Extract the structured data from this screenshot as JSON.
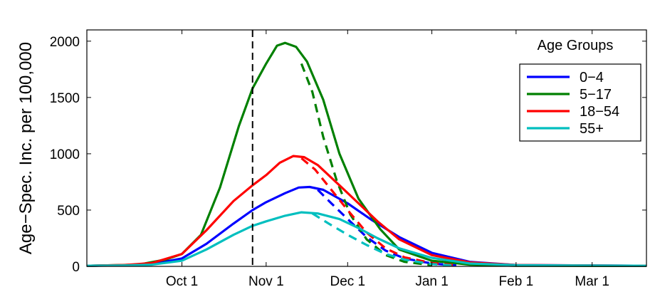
{
  "chart_data": {
    "type": "line",
    "title": "",
    "xlabel": "",
    "ylabel": "Age−Spec. Inc. per 100,000",
    "x_unit": "date",
    "xlim": [
      "2009-08-27",
      "2010-03-21"
    ],
    "ylim": [
      0,
      2100
    ],
    "x_ticks": [
      {
        "date": "2009-10-01",
        "label": "Oct 1"
      },
      {
        "date": "2009-11-01",
        "label": "Nov 1"
      },
      {
        "date": "2009-12-01",
        "label": "Dec 1"
      },
      {
        "date": "2010-01-01",
        "label": "Jan 1"
      },
      {
        "date": "2010-02-01",
        "label": "Feb 1"
      },
      {
        "date": "2010-03-01",
        "label": "Mar 1"
      }
    ],
    "y_ticks": [
      0,
      500,
      1000,
      1500,
      2000
    ],
    "grid": false,
    "vline": {
      "date": "2009-10-27",
      "style": "dashed",
      "color": "#000000"
    },
    "legend": {
      "title": "Age Groups",
      "position": "top-right"
    },
    "series": [
      {
        "name": "0−4",
        "color": "#0000ff",
        "style": "solid",
        "points": [
          [
            "2009-08-27",
            5
          ],
          [
            "2009-09-10",
            10
          ],
          [
            "2009-09-20",
            20
          ],
          [
            "2009-10-01",
            70
          ],
          [
            "2009-10-10",
            200
          ],
          [
            "2009-10-20",
            380
          ],
          [
            "2009-10-27",
            500
          ],
          [
            "2009-11-01",
            570
          ],
          [
            "2009-11-08",
            650
          ],
          [
            "2009-11-13",
            700
          ],
          [
            "2009-11-17",
            705
          ],
          [
            "2009-11-22",
            680
          ],
          [
            "2009-12-01",
            560
          ],
          [
            "2009-12-10",
            410
          ],
          [
            "2009-12-20",
            260
          ],
          [
            "2010-01-01",
            120
          ],
          [
            "2010-01-15",
            40
          ],
          [
            "2010-02-01",
            12
          ],
          [
            "2010-03-21",
            5
          ]
        ]
      },
      {
        "name": "0−4 (dashed)",
        "color": "#0000ff",
        "style": "dashed",
        "points": [
          [
            "2009-11-20",
            680
          ],
          [
            "2009-11-25",
            560
          ],
          [
            "2009-12-01",
            420
          ],
          [
            "2009-12-08",
            260
          ],
          [
            "2009-12-15",
            140
          ],
          [
            "2009-12-22",
            70
          ],
          [
            "2010-01-01",
            25
          ],
          [
            "2010-01-10",
            8
          ]
        ]
      },
      {
        "name": "5−17",
        "color": "#008000",
        "style": "solid",
        "points": [
          [
            "2009-08-27",
            5
          ],
          [
            "2009-09-15",
            15
          ],
          [
            "2009-09-25",
            60
          ],
          [
            "2009-10-01",
            110
          ],
          [
            "2009-10-08",
            280
          ],
          [
            "2009-10-15",
            700
          ],
          [
            "2009-10-22",
            1250
          ],
          [
            "2009-10-27",
            1580
          ],
          [
            "2009-11-01",
            1800
          ],
          [
            "2009-11-05",
            1960
          ],
          [
            "2009-11-08",
            1985
          ],
          [
            "2009-11-12",
            1950
          ],
          [
            "2009-11-16",
            1820
          ],
          [
            "2009-11-22",
            1480
          ],
          [
            "2009-11-28",
            1000
          ],
          [
            "2009-12-05",
            600
          ],
          [
            "2009-12-13",
            330
          ],
          [
            "2009-12-20",
            150
          ],
          [
            "2010-01-01",
            50
          ],
          [
            "2010-01-15",
            15
          ],
          [
            "2010-02-01",
            6
          ],
          [
            "2010-03-21",
            4
          ]
        ]
      },
      {
        "name": "5−17 (dashed)",
        "color": "#008000",
        "style": "dashed",
        "points": [
          [
            "2009-11-14",
            1800
          ],
          [
            "2009-11-18",
            1550
          ],
          [
            "2009-11-22",
            1150
          ],
          [
            "2009-11-27",
            760
          ],
          [
            "2009-12-02",
            460
          ],
          [
            "2009-12-08",
            240
          ],
          [
            "2009-12-15",
            100
          ],
          [
            "2009-12-22",
            40
          ],
          [
            "2010-01-01",
            10
          ]
        ]
      },
      {
        "name": "18−54",
        "color": "#ff0000",
        "style": "solid",
        "points": [
          [
            "2009-08-27",
            5
          ],
          [
            "2009-09-10",
            12
          ],
          [
            "2009-09-20",
            30
          ],
          [
            "2009-10-01",
            110
          ],
          [
            "2009-10-10",
            320
          ],
          [
            "2009-10-20",
            580
          ],
          [
            "2009-10-27",
            720
          ],
          [
            "2009-11-01",
            810
          ],
          [
            "2009-11-06",
            920
          ],
          [
            "2009-11-11",
            980
          ],
          [
            "2009-11-15",
            970
          ],
          [
            "2009-11-20",
            900
          ],
          [
            "2009-11-28",
            720
          ],
          [
            "2009-12-05",
            560
          ],
          [
            "2009-12-12",
            400
          ],
          [
            "2009-12-20",
            240
          ],
          [
            "2010-01-01",
            100
          ],
          [
            "2010-01-15",
            35
          ],
          [
            "2010-02-01",
            12
          ],
          [
            "2010-03-21",
            5
          ]
        ]
      },
      {
        "name": "18−54 (dashed)",
        "color": "#ff0000",
        "style": "dashed",
        "points": [
          [
            "2009-11-14",
            960
          ],
          [
            "2009-11-19",
            860
          ],
          [
            "2009-11-25",
            680
          ],
          [
            "2009-12-01",
            500
          ],
          [
            "2009-12-08",
            300
          ],
          [
            "2009-12-15",
            160
          ],
          [
            "2009-12-22",
            80
          ],
          [
            "2010-01-01",
            30
          ],
          [
            "2010-01-10",
            10
          ]
        ]
      },
      {
        "name": "55+",
        "color": "#00bfbf",
        "style": "solid",
        "points": [
          [
            "2009-08-27",
            5
          ],
          [
            "2009-09-10",
            8
          ],
          [
            "2009-09-20",
            15
          ],
          [
            "2009-10-01",
            50
          ],
          [
            "2009-10-10",
            150
          ],
          [
            "2009-10-20",
            280
          ],
          [
            "2009-10-27",
            360
          ],
          [
            "2009-11-01",
            400
          ],
          [
            "2009-11-08",
            450
          ],
          [
            "2009-11-14",
            480
          ],
          [
            "2009-11-20",
            470
          ],
          [
            "2009-11-28",
            420
          ],
          [
            "2009-12-05",
            340
          ],
          [
            "2009-12-12",
            250
          ],
          [
            "2009-12-20",
            160
          ],
          [
            "2010-01-01",
            75
          ],
          [
            "2010-01-15",
            25
          ],
          [
            "2010-02-01",
            10
          ],
          [
            "2010-03-21",
            5
          ]
        ]
      },
      {
        "name": "55+ (dashed)",
        "color": "#00bfbf",
        "style": "dashed",
        "points": [
          [
            "2009-11-18",
            470
          ],
          [
            "2009-11-24",
            380
          ],
          [
            "2009-12-01",
            280
          ],
          [
            "2009-12-08",
            190
          ],
          [
            "2009-12-15",
            110
          ],
          [
            "2009-12-22",
            60
          ],
          [
            "2010-01-01",
            20
          ],
          [
            "2010-01-10",
            6
          ]
        ]
      }
    ]
  }
}
